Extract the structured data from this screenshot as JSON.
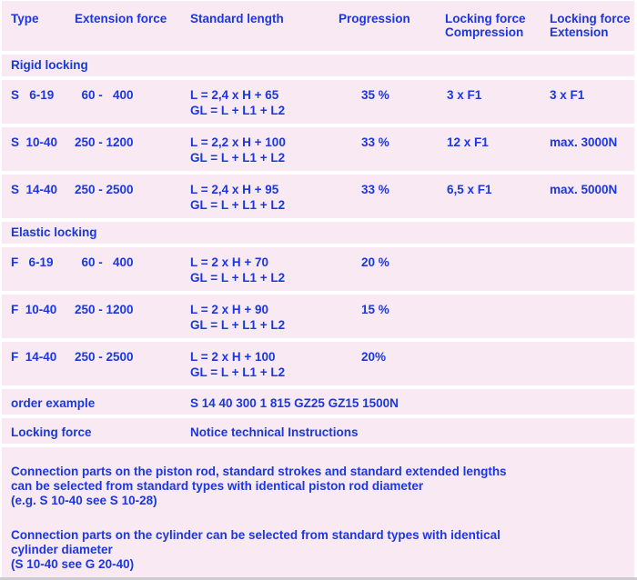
{
  "colors": {
    "band_pink": "#f9e9f3",
    "separator_white": "#ffffff",
    "text_blue": "#1b38dc",
    "bottom_edge_gray": "#cfccd0"
  },
  "header": {
    "type": "Type",
    "extension_force": "Extension force",
    "standard_length": "Standard length",
    "progression": "Progression",
    "locking_compression_l1": "Locking force",
    "locking_compression_l2": "Compression",
    "locking_extension_l1": "Locking force",
    "locking_extension_l2": "Extension"
  },
  "sections": {
    "rigid": "Rigid locking",
    "elastic": "Elastic locking"
  },
  "rows": [
    {
      "type": "S   6-19",
      "extension_force": "  60 -   400",
      "length1": "L = 2,4 x H + 65",
      "length2": "GL = L + L1 + L2",
      "progression": "35 %",
      "lock_compression": "3 x F1",
      "lock_extension": "3 x F1"
    },
    {
      "type": "S  10-40",
      "extension_force": "250 - 1200",
      "length1": "L = 2,2 x H + 100",
      "length2": "GL = L + L1 + L2",
      "progression": "33 %",
      "lock_compression": "12 x F1",
      "lock_extension": "max. 3000N"
    },
    {
      "type": "S  14-40",
      "extension_force": "250 - 2500",
      "length1": "L = 2,4 x H + 95",
      "length2": "GL = L + L1 + L2",
      "progression": "33 %",
      "lock_compression": "6,5 x F1",
      "lock_extension": "max. 5000N"
    },
    {
      "type": "F   6-19",
      "extension_force": "  60 -   400",
      "length1": "L = 2 x H + 70",
      "length2": "GL = L + L1 + L2",
      "progression": "20 %",
      "lock_compression": "",
      "lock_extension": ""
    },
    {
      "type": "F  10-40",
      "extension_force": "250 - 1200",
      "length1": "L = 2 x H + 90",
      "length2": "GL = L + L1 + L2",
      "progression": "15 %",
      "lock_compression": "",
      "lock_extension": ""
    },
    {
      "type": "F  14-40",
      "extension_force": "250 - 2500",
      "length1": "L = 2 x H + 100",
      "length2": "GL = L + L1 + L2",
      "progression": "20%",
      "lock_compression": "",
      "lock_extension": ""
    }
  ],
  "order_example": {
    "label": "order example",
    "value": "S 14 40 300 1 815 GZ25 GZ15 1500N"
  },
  "locking_force_row": {
    "label": "Locking force",
    "value": "Notice technical Instructions"
  },
  "notes": {
    "note1": "Connection parts on the piston rod, standard strokes and standard extended lengths\ncan be selected from standard types with identical piston rod diameter\n(e.g. S 10-40 see S 10-28)",
    "note2": "Connection parts on the cylinder can be selected from standard types with identical\ncylinder diameter\n(S 10-40 see G 20-40)"
  }
}
